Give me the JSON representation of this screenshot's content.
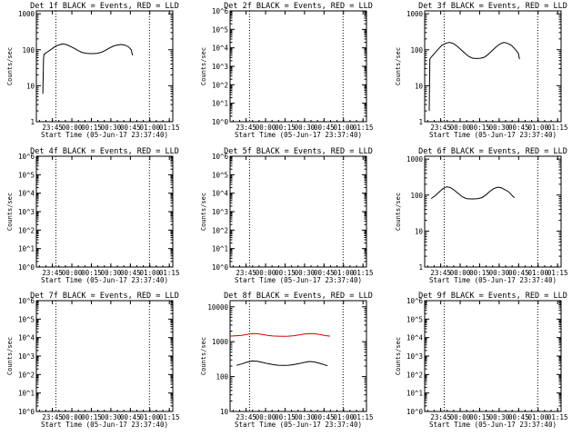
{
  "chart_data": [
    {
      "type": "line",
      "title": "Det 1f BLACK = Events, RED = LLD",
      "ylabel": "Counts/sec",
      "xlabel": "Start Time (05-Jun-17 23:37:40)",
      "x_ticks": [
        "23:45",
        "00:00",
        "00:15",
        "00:30",
        "00:45",
        "01:00",
        "01:15"
      ],
      "y_scale": "log",
      "y_ticks": [
        {
          "value": 1,
          "label": "1"
        },
        {
          "value": 10,
          "label": "10"
        },
        {
          "value": 100,
          "label": "100"
        },
        {
          "value": 1000,
          "label": "1000"
        }
      ],
      "ylim": [
        1,
        1200
      ],
      "xlim_minutes": [
        -5,
        100
      ],
      "vlines_minutes": [
        10,
        82
      ],
      "events_series": [
        [
          0,
          6
        ],
        [
          0.5,
          60
        ],
        [
          1,
          75
        ],
        [
          3,
          85
        ],
        [
          6,
          100
        ],
        [
          9,
          120
        ],
        [
          12,
          135
        ],
        [
          15,
          145
        ],
        [
          18,
          140
        ],
        [
          21,
          125
        ],
        [
          24,
          110
        ],
        [
          27,
          95
        ],
        [
          30,
          85
        ],
        [
          33,
          80
        ],
        [
          36,
          78
        ],
        [
          39,
          78
        ],
        [
          42,
          80
        ],
        [
          45,
          85
        ],
        [
          48,
          95
        ],
        [
          51,
          110
        ],
        [
          54,
          125
        ],
        [
          57,
          135
        ],
        [
          60,
          140
        ],
        [
          63,
          135
        ],
        [
          66,
          120
        ],
        [
          68,
          100
        ],
        [
          69,
          70
        ]
      ],
      "lld_series": []
    },
    {
      "type": "line",
      "title": "Det 2f BLACK = Events, RED = LLD",
      "ylabel": "Counts/sec",
      "xlabel": "Start Time (05-Jun-17 23:37:40)",
      "x_ticks": [
        "23:45",
        "00:00",
        "00:15",
        "00:30",
        "00:45",
        "01:00",
        "01:15"
      ],
      "y_scale": "log",
      "y_ticks": [
        {
          "value": 1,
          "label": "10^0"
        },
        {
          "value": 10,
          "label": "10^1"
        },
        {
          "value": 100,
          "label": "10^2"
        },
        {
          "value": 1000,
          "label": "10^3"
        },
        {
          "value": 10000,
          "label": "10^4"
        },
        {
          "value": 100000,
          "label": "10^5"
        },
        {
          "value": 1000000,
          "label": "10^6"
        }
      ],
      "ylim": [
        1,
        1000000
      ],
      "xlim_minutes": [
        -5,
        100
      ],
      "vlines_minutes": [
        10,
        82
      ],
      "events_series": [],
      "lld_series": []
    },
    {
      "type": "line",
      "title": "Det 3f BLACK = Events, RED = LLD",
      "ylabel": "Counts/sec",
      "xlabel": "Start Time (05-Jun-17 23:37:40)",
      "x_ticks": [
        "23:45",
        "00:00",
        "00:15",
        "00:30",
        "00:45",
        "01:00",
        "01:15"
      ],
      "y_scale": "log",
      "y_ticks": [
        {
          "value": 1,
          "label": "1"
        },
        {
          "value": 10,
          "label": "10"
        },
        {
          "value": 100,
          "label": "100"
        },
        {
          "value": 1000,
          "label": "1000"
        }
      ],
      "ylim": [
        1,
        1200
      ],
      "xlim_minutes": [
        -5,
        100
      ],
      "vlines_minutes": [
        10,
        82
      ],
      "events_series": [
        [
          -1.5,
          2
        ],
        [
          -1,
          55
        ],
        [
          0,
          62
        ],
        [
          2,
          75
        ],
        [
          5,
          100
        ],
        [
          8,
          130
        ],
        [
          11,
          150
        ],
        [
          14,
          160
        ],
        [
          17,
          150
        ],
        [
          20,
          125
        ],
        [
          23,
          100
        ],
        [
          26,
          80
        ],
        [
          29,
          65
        ],
        [
          32,
          58
        ],
        [
          35,
          57
        ],
        [
          38,
          58
        ],
        [
          41,
          62
        ],
        [
          44,
          75
        ],
        [
          47,
          95
        ],
        [
          50,
          120
        ],
        [
          53,
          145
        ],
        [
          56,
          160
        ],
        [
          59,
          150
        ],
        [
          62,
          130
        ],
        [
          65,
          100
        ],
        [
          67,
          80
        ],
        [
          68,
          55
        ]
      ],
      "lld_series": []
    },
    {
      "type": "line",
      "title": "Det 4f BLACK = Events, RED = LLD",
      "ylabel": "Counts/sec",
      "xlabel": "Start Time (05-Jun-17 23:37:40)",
      "x_ticks": [
        "23:45",
        "00:00",
        "00:15",
        "00:30",
        "00:45",
        "01:00",
        "01:15"
      ],
      "y_scale": "log",
      "y_ticks": [
        {
          "value": 1,
          "label": "10^0"
        },
        {
          "value": 10,
          "label": "10^1"
        },
        {
          "value": 100,
          "label": "10^2"
        },
        {
          "value": 1000,
          "label": "10^3"
        },
        {
          "value": 10000,
          "label": "10^4"
        },
        {
          "value": 100000,
          "label": "10^5"
        },
        {
          "value": 1000000,
          "label": "10^6"
        }
      ],
      "ylim": [
        1,
        1000000
      ],
      "xlim_minutes": [
        -5,
        100
      ],
      "vlines_minutes": [
        10,
        82
      ],
      "events_series": [],
      "lld_series": []
    },
    {
      "type": "line",
      "title": "Det 5f BLACK = Events, RED = LLD",
      "ylabel": "Counts/sec",
      "xlabel": "Start Time (05-Jun-17 23:37:40)",
      "x_ticks": [
        "23:45",
        "00:00",
        "00:15",
        "00:30",
        "00:45",
        "01:00",
        "01:15"
      ],
      "y_scale": "log",
      "y_ticks": [
        {
          "value": 1,
          "label": "10^0"
        },
        {
          "value": 10,
          "label": "10^1"
        },
        {
          "value": 100,
          "label": "10^2"
        },
        {
          "value": 1000,
          "label": "10^3"
        },
        {
          "value": 10000,
          "label": "10^4"
        },
        {
          "value": 100000,
          "label": "10^5"
        },
        {
          "value": 1000000,
          "label": "10^6"
        }
      ],
      "ylim": [
        1,
        1000000
      ],
      "xlim_minutes": [
        -5,
        100
      ],
      "vlines_minutes": [
        10,
        82
      ],
      "events_series": [],
      "lld_series": []
    },
    {
      "type": "line",
      "title": "Det 6f BLACK = Events, RED = LLD",
      "ylabel": "Counts/sec",
      "xlabel": "Start Time (05-Jun-17 23:37:40)",
      "x_ticks": [
        "23:45",
        "00:00",
        "00:15",
        "00:30",
        "00:45",
        "01:00",
        "01:15"
      ],
      "y_scale": "log",
      "y_ticks": [
        {
          "value": 1,
          "label": "1"
        },
        {
          "value": 10,
          "label": "10"
        },
        {
          "value": 100,
          "label": "100"
        },
        {
          "value": 1000,
          "label": "1000"
        }
      ],
      "ylim": [
        1,
        1200
      ],
      "xlim_minutes": [
        -5,
        100
      ],
      "vlines_minutes": [
        10,
        82
      ],
      "events_series": [
        [
          0,
          80
        ],
        [
          3,
          95
        ],
        [
          6,
          120
        ],
        [
          9,
          150
        ],
        [
          12,
          170
        ],
        [
          15,
          160
        ],
        [
          18,
          135
        ],
        [
          21,
          110
        ],
        [
          24,
          90
        ],
        [
          27,
          80
        ],
        [
          30,
          78
        ],
        [
          33,
          78
        ],
        [
          36,
          80
        ],
        [
          39,
          85
        ],
        [
          42,
          100
        ],
        [
          45,
          125
        ],
        [
          48,
          150
        ],
        [
          51,
          165
        ],
        [
          54,
          160
        ],
        [
          57,
          140
        ],
        [
          60,
          120
        ],
        [
          62,
          100
        ],
        [
          64,
          85
        ]
      ],
      "lld_series": []
    },
    {
      "type": "line",
      "title": "Det 7f BLACK = Events, RED = LLD",
      "ylabel": "Counts/sec",
      "xlabel": "Start Time (05-Jun-17 23:37:40)",
      "x_ticks": [
        "23:45",
        "00:00",
        "00:15",
        "00:30",
        "00:45",
        "01:00",
        "01:15"
      ],
      "y_scale": "log",
      "y_ticks": [
        {
          "value": 1,
          "label": "10^0"
        },
        {
          "value": 10,
          "label": "10^1"
        },
        {
          "value": 100,
          "label": "10^2"
        },
        {
          "value": 1000,
          "label": "10^3"
        },
        {
          "value": 10000,
          "label": "10^4"
        },
        {
          "value": 100000,
          "label": "10^5"
        },
        {
          "value": 1000000,
          "label": "10^6"
        }
      ],
      "ylim": [
        1,
        1000000
      ],
      "xlim_minutes": [
        -5,
        100
      ],
      "vlines_minutes": [
        10,
        82
      ],
      "events_series": [],
      "lld_series": []
    },
    {
      "type": "line",
      "title": "Det 8f BLACK = Events, RED = LLD",
      "ylabel": "Counts/sec",
      "xlabel": "Start Time (05-Jun-17 23:37:40)",
      "x_ticks": [
        "23:45",
        "00:00",
        "00:15",
        "00:30",
        "00:45",
        "01:00",
        "01:15"
      ],
      "y_scale": "log",
      "y_ticks": [
        {
          "value": 10,
          "label": "10"
        },
        {
          "value": 100,
          "label": "100"
        },
        {
          "value": 1000,
          "label": "1000"
        },
        {
          "value": 10000,
          "label": "10000"
        }
      ],
      "ylim": [
        10,
        15000
      ],
      "xlim_minutes": [
        -5,
        100
      ],
      "vlines_minutes": [
        10,
        82
      ],
      "events_series": [
        [
          0,
          210
        ],
        [
          4,
          230
        ],
        [
          8,
          260
        ],
        [
          12,
          280
        ],
        [
          16,
          275
        ],
        [
          20,
          255
        ],
        [
          24,
          235
        ],
        [
          28,
          220
        ],
        [
          32,
          212
        ],
        [
          36,
          210
        ],
        [
          40,
          212
        ],
        [
          44,
          220
        ],
        [
          48,
          235
        ],
        [
          52,
          255
        ],
        [
          56,
          270
        ],
        [
          60,
          262
        ],
        [
          64,
          240
        ],
        [
          68,
          215
        ],
        [
          70,
          205
        ]
      ],
      "lld_series": [
        [
          -5,
          1450
        ],
        [
          0,
          1480
        ],
        [
          4,
          1520
        ],
        [
          8,
          1620
        ],
        [
          12,
          1700
        ],
        [
          16,
          1690
        ],
        [
          20,
          1600
        ],
        [
          24,
          1520
        ],
        [
          28,
          1460
        ],
        [
          32,
          1440
        ],
        [
          36,
          1430
        ],
        [
          40,
          1440
        ],
        [
          44,
          1480
        ],
        [
          48,
          1560
        ],
        [
          52,
          1650
        ],
        [
          56,
          1700
        ],
        [
          60,
          1690
        ],
        [
          64,
          1600
        ],
        [
          68,
          1500
        ],
        [
          72,
          1440
        ]
      ],
      "lld_color": "#d40000"
    },
    {
      "type": "line",
      "title": "Det 9f BLACK = Events, RED = LLD",
      "ylabel": "Counts/sec",
      "xlabel": "Start Time (05-Jun-17 23:37:40)",
      "x_ticks": [
        "23:45",
        "00:00",
        "00:15",
        "00:30",
        "00:45",
        "01:00",
        "01:15"
      ],
      "y_scale": "log",
      "y_ticks": [
        {
          "value": 1,
          "label": "10^0"
        },
        {
          "value": 10,
          "label": "10^1"
        },
        {
          "value": 100,
          "label": "10^2"
        },
        {
          "value": 1000,
          "label": "10^3"
        },
        {
          "value": 10000,
          "label": "10^4"
        },
        {
          "value": 100000,
          "label": "10^5"
        },
        {
          "value": 1000000,
          "label": "10^6"
        }
      ],
      "ylim": [
        1,
        1000000
      ],
      "xlim_minutes": [
        -5,
        100
      ],
      "vlines_minutes": [
        10,
        82
      ],
      "events_series": [],
      "lld_series": []
    }
  ]
}
